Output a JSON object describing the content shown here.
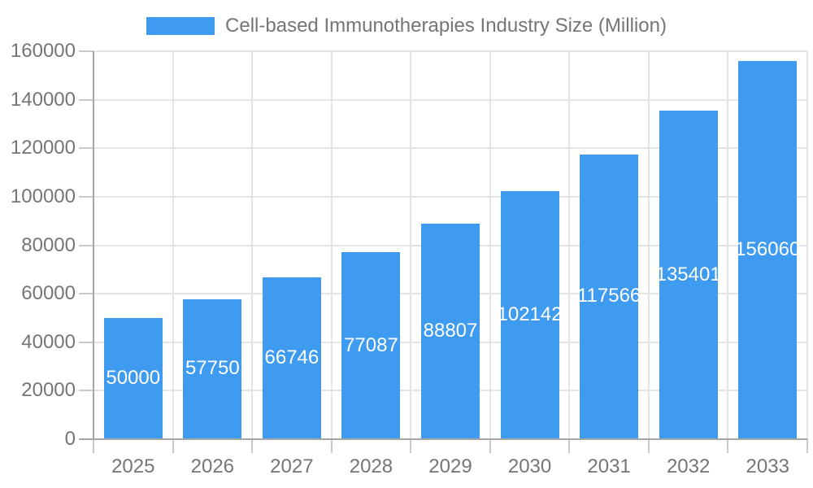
{
  "legend": {
    "label": "Cell-based Immunotherapies Industry Size (Million)"
  },
  "chart_data": {
    "type": "bar",
    "title": "Cell-based Immunotherapies Industry Size (Million)",
    "series_name": "Cell-based Immunotherapies Industry Size (Million)",
    "categories": [
      "2025",
      "2026",
      "2027",
      "2028",
      "2029",
      "2030",
      "2031",
      "2032",
      "2033"
    ],
    "values": [
      50000,
      57750,
      66746,
      77087,
      88807,
      102142,
      117566,
      135401,
      156060
    ],
    "value_labels": [
      "50000",
      "57750",
      "66746",
      "77087",
      "88807",
      "102142",
      "117566",
      "135401",
      "156060"
    ],
    "xlabel": "",
    "ylabel": "",
    "ylim": [
      0,
      160000
    ],
    "yticks": [
      0,
      20000,
      40000,
      60000,
      80000,
      100000,
      120000,
      140000,
      160000
    ],
    "ytick_labels": [
      "0",
      "20000",
      "40000",
      "60000",
      "80000",
      "100000",
      "120000",
      "140000",
      "160000"
    ],
    "grid": true,
    "legend_position": "top",
    "bar_color": "#3E9BF0",
    "value_label_color": "#FFFFFF",
    "axis_text_color": "#757575",
    "gridline_color": "#E4E4E4",
    "axis_line_color": "#A6A6A6"
  }
}
